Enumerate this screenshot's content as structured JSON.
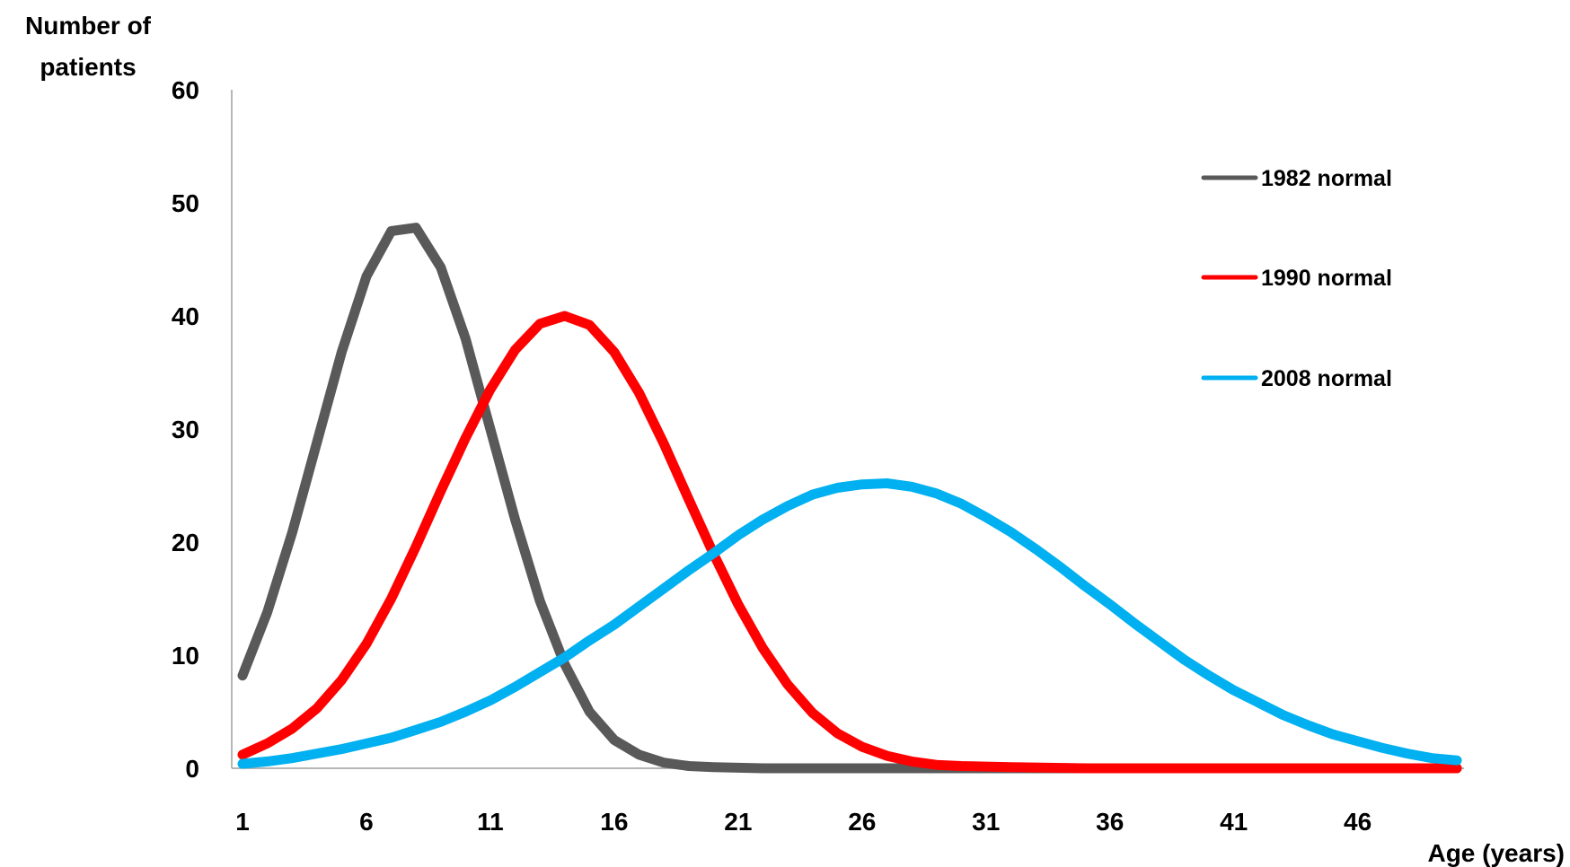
{
  "chart_data": {
    "type": "line",
    "title": "",
    "ylabel_lines": [
      "Number of",
      "patients"
    ],
    "xlabel": "Age (years)",
    "ylim": [
      0,
      60
    ],
    "xlim": [
      1,
      50
    ],
    "y_ticks": [
      0,
      10,
      20,
      30,
      40,
      50,
      60
    ],
    "x_ticks": [
      1,
      6,
      11,
      16,
      21,
      26,
      31,
      36,
      41,
      46
    ],
    "grid": false,
    "legend_position": "right",
    "series": [
      {
        "name": "1982 normal",
        "color": "#595959",
        "x": [
          1,
          2,
          3,
          4,
          5,
          6,
          7,
          8,
          9,
          10,
          11,
          12,
          13,
          14,
          15,
          16,
          17,
          18,
          19,
          20,
          22,
          24,
          26,
          28,
          30,
          35,
          40,
          45,
          50
        ],
        "values": [
          8.2,
          13.8,
          20.8,
          28.8,
          36.8,
          43.5,
          47.5,
          47.8,
          44.3,
          38.0,
          30.0,
          22.0,
          14.8,
          9.2,
          5.0,
          2.5,
          1.2,
          0.5,
          0.2,
          0.1,
          0,
          0,
          0,
          0,
          0,
          0,
          0,
          0,
          0
        ]
      },
      {
        "name": "1990 normal",
        "color": "#ff0000",
        "x": [
          1,
          2,
          3,
          4,
          5,
          6,
          7,
          8,
          9,
          10,
          11,
          12,
          13,
          14,
          15,
          16,
          17,
          18,
          19,
          20,
          21,
          22,
          23,
          24,
          25,
          26,
          27,
          28,
          29,
          30,
          32,
          35,
          40,
          45,
          50
        ],
        "values": [
          1.2,
          2.2,
          3.5,
          5.3,
          7.8,
          11.0,
          15.0,
          19.6,
          24.5,
          29.2,
          33.5,
          37.0,
          39.3,
          40.0,
          39.2,
          36.8,
          33.2,
          28.7,
          23.8,
          19.0,
          14.5,
          10.6,
          7.4,
          4.9,
          3.1,
          1.9,
          1.1,
          0.6,
          0.3,
          0.2,
          0.1,
          0,
          0,
          0,
          0
        ]
      },
      {
        "name": "2008 normal",
        "color": "#00b0f0",
        "x": [
          1,
          2,
          3,
          4,
          5,
          6,
          7,
          8,
          9,
          10,
          11,
          12,
          13,
          14,
          15,
          16,
          17,
          18,
          19,
          20,
          21,
          22,
          23,
          24,
          25,
          26,
          27,
          28,
          29,
          30,
          31,
          32,
          33,
          34,
          35,
          36,
          37,
          38,
          39,
          40,
          41,
          42,
          43,
          44,
          45,
          46,
          47,
          48,
          49,
          50
        ],
        "values": [
          0.4,
          0.6,
          0.9,
          1.3,
          1.7,
          2.2,
          2.7,
          3.4,
          4.1,
          5.0,
          6.0,
          7.2,
          8.5,
          9.8,
          11.3,
          12.7,
          14.3,
          15.9,
          17.5,
          19.0,
          20.6,
          22.0,
          23.2,
          24.2,
          24.8,
          25.1,
          25.2,
          24.9,
          24.3,
          23.4,
          22.2,
          20.9,
          19.4,
          17.8,
          16.1,
          14.5,
          12.8,
          11.2,
          9.6,
          8.2,
          6.9,
          5.8,
          4.7,
          3.8,
          3.0,
          2.4,
          1.8,
          1.3,
          0.9,
          0.7
        ]
      }
    ]
  }
}
